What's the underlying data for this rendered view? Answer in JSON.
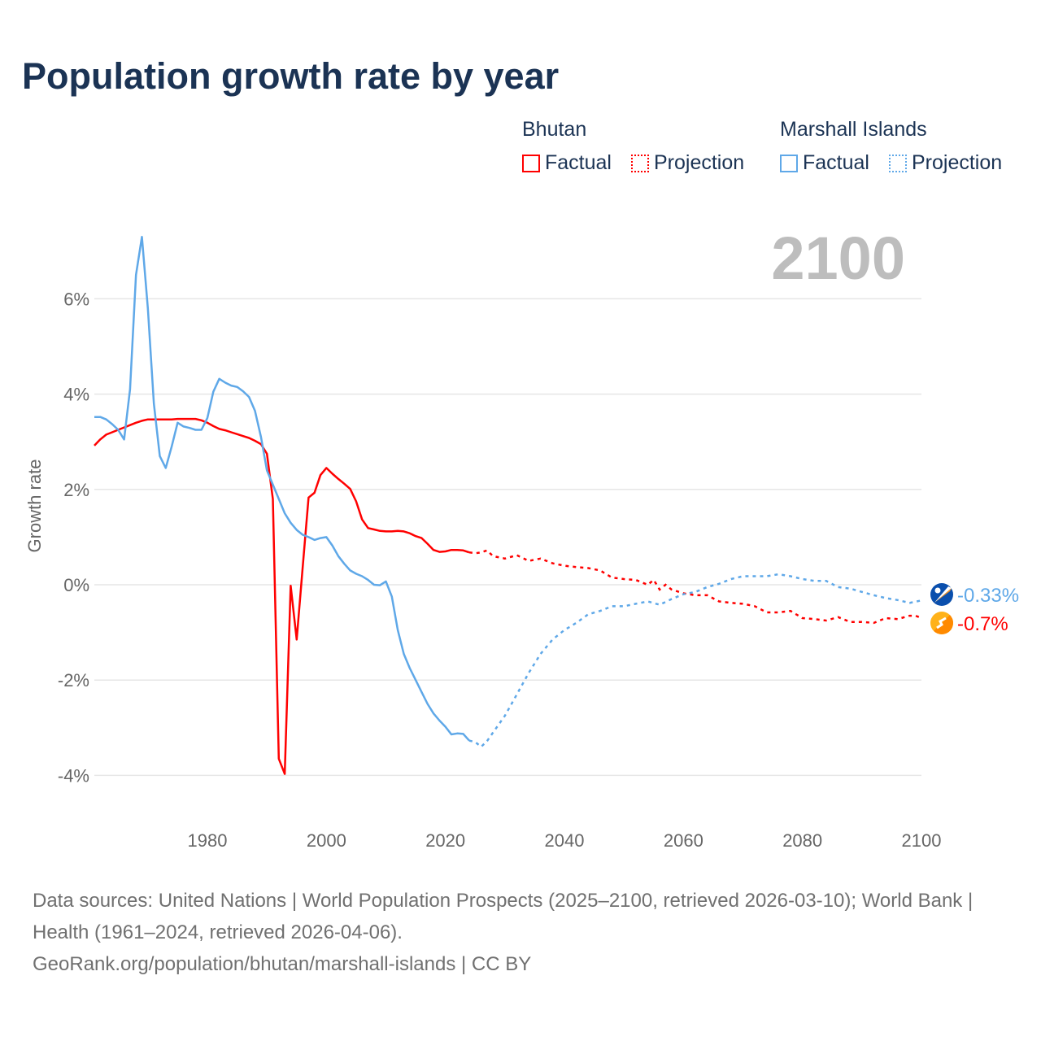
{
  "chart_data": {
    "type": "line",
    "title": "Population growth rate by year",
    "ylabel": "Growth rate",
    "xlabel": "",
    "xlim": [
      1961,
      2100
    ],
    "ylim": [
      -4.8,
      7.6
    ],
    "x_ticks": [
      1980,
      2000,
      2020,
      2040,
      2060,
      2080,
      2100
    ],
    "x_tick_labels": [
      "1980",
      "2000",
      "2020",
      "2040",
      "2060",
      "2080",
      "2100"
    ],
    "y_ticks": [
      6,
      4,
      2,
      0,
      -2,
      -4
    ],
    "y_tick_labels": [
      "6%",
      "4%",
      "2%",
      "0%",
      "-2%",
      "-4%"
    ],
    "grid": true,
    "current_year_label": "2100",
    "legend": {
      "placement": "top-right",
      "groups": [
        {
          "name": "Bhutan",
          "items": [
            "Factual",
            "Projection"
          ]
        },
        {
          "name": "Marshall Islands",
          "items": [
            "Factual",
            "Projection"
          ]
        }
      ]
    },
    "series": [
      {
        "name": "Bhutan",
        "color": "#ff0000",
        "end_label": "-0.7%",
        "flag": "bhutan-flag",
        "factual": {
          "x": [
            1961,
            1962,
            1963,
            1964,
            1965,
            1966,
            1967,
            1968,
            1969,
            1970,
            1971,
            1972,
            1973,
            1974,
            1975,
            1976,
            1977,
            1978,
            1979,
            1980,
            1981,
            1982,
            1983,
            1984,
            1985,
            1986,
            1987,
            1988,
            1989,
            1990,
            1991,
            1992,
            1993,
            1994,
            1995,
            1996,
            1997,
            1998,
            1999,
            2000,
            2001,
            2002,
            2003,
            2004,
            2005,
            2006,
            2007,
            2008,
            2009,
            2010,
            2011,
            2012,
            2013,
            2014,
            2015,
            2016,
            2017,
            2018,
            2019,
            2020,
            2021,
            2022,
            2023,
            2024
          ],
          "y": [
            2.92,
            3.05,
            3.15,
            3.2,
            3.25,
            3.3,
            3.35,
            3.4,
            3.44,
            3.47,
            3.47,
            3.47,
            3.47,
            3.47,
            3.48,
            3.48,
            3.48,
            3.48,
            3.45,
            3.4,
            3.33,
            3.27,
            3.24,
            3.2,
            3.16,
            3.12,
            3.08,
            3.02,
            2.95,
            2.75,
            1.8,
            -3.65,
            -3.97,
            -0.02,
            -1.15,
            0.35,
            1.83,
            1.93,
            2.3,
            2.45,
            2.33,
            2.22,
            2.12,
            2.01,
            1.75,
            1.37,
            1.19,
            1.16,
            1.13,
            1.12,
            1.12,
            1.13,
            1.12,
            1.08,
            1.02,
            0.98,
            0.86,
            0.73,
            0.69,
            0.7,
            0.73,
            0.73,
            0.72,
            0.68
          ]
        },
        "projection": {
          "x": [
            2024,
            2025,
            2026,
            2027,
            2028,
            2030,
            2032,
            2034,
            2036,
            2038,
            2040,
            2042,
            2044,
            2046,
            2048,
            2050,
            2052,
            2054,
            2055,
            2056,
            2057,
            2058,
            2060,
            2062,
            2064,
            2066,
            2068,
            2070,
            2072,
            2074,
            2076,
            2078,
            2080,
            2082,
            2084,
            2086,
            2088,
            2090,
            2092,
            2094,
            2096,
            2098,
            2099,
            2100
          ],
          "y": [
            0.68,
            0.66,
            0.68,
            0.72,
            0.6,
            0.55,
            0.62,
            0.5,
            0.55,
            0.45,
            0.4,
            0.37,
            0.35,
            0.3,
            0.15,
            0.12,
            0.1,
            0.0,
            0.1,
            -0.1,
            0.0,
            -0.1,
            -0.18,
            -0.22,
            -0.22,
            -0.35,
            -0.38,
            -0.4,
            -0.45,
            -0.58,
            -0.58,
            -0.55,
            -0.7,
            -0.72,
            -0.75,
            -0.68,
            -0.78,
            -0.78,
            -0.8,
            -0.7,
            -0.72,
            -0.65,
            -0.65,
            -0.7
          ]
        }
      },
      {
        "name": "Marshall Islands",
        "color": "#5fa8e8",
        "end_label": "-0.33%",
        "flag": "marshall-islands-flag",
        "factual": {
          "x": [
            1961,
            1962,
            1963,
            1964,
            1965,
            1966,
            1967,
            1968,
            1969,
            1970,
            1971,
            1972,
            1973,
            1974,
            1975,
            1976,
            1977,
            1978,
            1979,
            1980,
            1981,
            1982,
            1983,
            1984,
            1985,
            1986,
            1987,
            1988,
            1989,
            1990,
            1991,
            1992,
            1993,
            1994,
            1995,
            1996,
            1997,
            1998,
            1999,
            2000,
            2001,
            2002,
            2003,
            2004,
            2005,
            2006,
            2007,
            2008,
            2009,
            2010,
            2011,
            2012,
            2013,
            2014,
            2015,
            2016,
            2017,
            2018,
            2019,
            2020,
            2021,
            2022,
            2023,
            2024
          ],
          "y": [
            3.52,
            3.52,
            3.47,
            3.37,
            3.25,
            3.05,
            4.1,
            6.5,
            7.3,
            5.8,
            3.8,
            2.7,
            2.45,
            2.9,
            3.4,
            3.32,
            3.29,
            3.25,
            3.25,
            3.5,
            4.05,
            4.32,
            4.24,
            4.18,
            4.15,
            4.06,
            3.94,
            3.65,
            3.1,
            2.4,
            2.1,
            1.8,
            1.5,
            1.3,
            1.15,
            1.05,
            1.0,
            0.94,
            0.98,
            1.0,
            0.82,
            0.6,
            0.44,
            0.3,
            0.23,
            0.18,
            0.1,
            0.0,
            -0.01,
            0.07,
            -0.25,
            -0.95,
            -1.45,
            -1.75,
            -2.0,
            -2.25,
            -2.5,
            -2.7,
            -2.85,
            -2.98,
            -3.14,
            -3.12,
            -3.13,
            -3.27
          ]
        },
        "projection": {
          "x": [
            2024,
            2025,
            2026,
            2027,
            2028,
            2030,
            2032,
            2034,
            2036,
            2038,
            2040,
            2042,
            2044,
            2046,
            2048,
            2050,
            2052,
            2054,
            2056,
            2058,
            2060,
            2062,
            2064,
            2066,
            2068,
            2070,
            2072,
            2074,
            2076,
            2078,
            2080,
            2082,
            2084,
            2086,
            2088,
            2090,
            2092,
            2094,
            2096,
            2098,
            2100
          ],
          "y": [
            -3.27,
            -3.3,
            -3.4,
            -3.28,
            -3.1,
            -2.75,
            -2.3,
            -1.85,
            -1.45,
            -1.15,
            -0.95,
            -0.8,
            -0.62,
            -0.55,
            -0.45,
            -0.45,
            -0.4,
            -0.35,
            -0.42,
            -0.3,
            -0.2,
            -0.15,
            -0.05,
            0.02,
            0.12,
            0.18,
            0.18,
            0.18,
            0.22,
            0.18,
            0.12,
            0.08,
            0.08,
            -0.05,
            -0.08,
            -0.15,
            -0.22,
            -0.28,
            -0.32,
            -0.38,
            -0.33
          ]
        }
      }
    ],
    "footer": {
      "line1": "Data sources: United Nations | World Population Prospects (2025–2100, retrieved 2026-03-10); World Bank | Health (1961–2024, retrieved 2026-04-06).",
      "line2": "GeoRank.org/population/bhutan/marshall-islands | CC BY"
    }
  }
}
